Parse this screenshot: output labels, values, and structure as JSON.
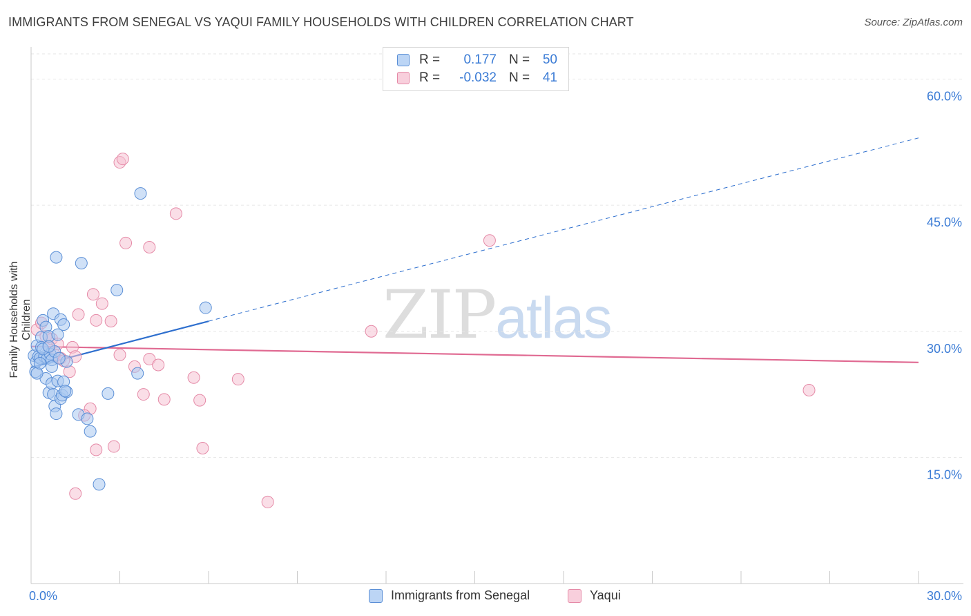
{
  "title": "IMMIGRANTS FROM SENEGAL VS YAQUI FAMILY HOUSEHOLDS WITH CHILDREN CORRELATION CHART",
  "source": "Source: ZipAtlas.com",
  "watermark": {
    "zip": "ZIP",
    "atlas": "atlas"
  },
  "legend": {
    "rows": [
      {
        "r_label": "R =",
        "r_value": "0.177",
        "n_label": "N =",
        "n_value": "50"
      },
      {
        "r_label": "R =",
        "r_value": "-0.032",
        "n_label": "N =",
        "n_value": "41"
      }
    ]
  },
  "bottom_legend": [
    "Immigrants from Senegal",
    "Yaqui"
  ],
  "colors": {
    "senegal_fill": "#a9c8f0",
    "senegal_stroke": "#5b8fd6",
    "senegal_line": "#2e6fce",
    "yaqui_fill": "#f6c3d3",
    "yaqui_stroke": "#e58aa7",
    "yaqui_line": "#e06a92",
    "axis_label": "#3a7bd5",
    "grid": "#e6e6e6"
  },
  "chart_data": {
    "type": "scatter",
    "title": "IMMIGRANTS FROM SENEGAL VS YAQUI FAMILY HOUSEHOLDS WITH CHILDREN CORRELATION CHART",
    "xlabel": "",
    "ylabel": "Family Households with Children",
    "xlim": [
      0,
      30
    ],
    "ylim": [
      0,
      63
    ],
    "x_tick_labels": [
      "0.0%",
      "30.0%"
    ],
    "y_ticks": [
      15,
      30,
      45,
      60
    ],
    "y_tick_labels": [
      "15.0%",
      "30.0%",
      "45.0%",
      "60.0%"
    ],
    "series": [
      {
        "name": "Immigrants from Senegal",
        "R": 0.177,
        "N": 50,
        "trend": {
          "x0": 0,
          "y0": 25.7,
          "x1": 6.0,
          "y1": 31.2,
          "dashed_to_x": 30,
          "dashed_to_y": 53.0
        },
        "points": [
          [
            0.1,
            27.1
          ],
          [
            0.15,
            25.2
          ],
          [
            0.18,
            26.4
          ],
          [
            0.2,
            28.3
          ],
          [
            0.25,
            27.0
          ],
          [
            0.3,
            26.8
          ],
          [
            0.35,
            29.3
          ],
          [
            0.4,
            31.3
          ],
          [
            0.45,
            27.0
          ],
          [
            0.5,
            30.5
          ],
          [
            0.55,
            26.8
          ],
          [
            0.6,
            29.4
          ],
          [
            0.65,
            27.3
          ],
          [
            0.7,
            26.6
          ],
          [
            0.75,
            32.1
          ],
          [
            0.8,
            27.6
          ],
          [
            0.85,
            38.8
          ],
          [
            0.9,
            29.6
          ],
          [
            1.0,
            31.4
          ],
          [
            1.1,
            30.8
          ],
          [
            1.2,
            26.4
          ],
          [
            0.5,
            24.4
          ],
          [
            0.6,
            22.7
          ],
          [
            0.7,
            23.8
          ],
          [
            0.75,
            22.5
          ],
          [
            0.8,
            21.1
          ],
          [
            0.85,
            20.2
          ],
          [
            0.9,
            24.1
          ],
          [
            1.0,
            22.0
          ],
          [
            1.05,
            22.4
          ],
          [
            1.1,
            24.0
          ],
          [
            1.2,
            22.8
          ],
          [
            1.6,
            20.1
          ],
          [
            1.9,
            19.6
          ],
          [
            2.0,
            18.1
          ],
          [
            1.7,
            38.1
          ],
          [
            2.6,
            22.6
          ],
          [
            2.9,
            34.9
          ],
          [
            3.6,
            25.0
          ],
          [
            3.7,
            46.4
          ],
          [
            5.9,
            32.8
          ],
          [
            2.3,
            11.8
          ],
          [
            0.2,
            25.0
          ],
          [
            0.3,
            26.2
          ],
          [
            0.35,
            28.1
          ],
          [
            0.4,
            27.9
          ],
          [
            0.6,
            28.2
          ],
          [
            0.7,
            25.8
          ],
          [
            0.95,
            26.8
          ],
          [
            1.15,
            22.9
          ]
        ]
      },
      {
        "name": "Yaqui",
        "R": -0.032,
        "N": 41,
        "trend": {
          "x0": 0,
          "y0": 28.2,
          "x1": 30,
          "y1": 26.3
        },
        "points": [
          [
            0.2,
            30.2
          ],
          [
            0.35,
            31.0
          ],
          [
            0.5,
            29.4
          ],
          [
            0.6,
            28.1
          ],
          [
            0.7,
            29.1
          ],
          [
            0.8,
            27.2
          ],
          [
            0.9,
            28.5
          ],
          [
            1.0,
            26.8
          ],
          [
            1.1,
            26.5
          ],
          [
            1.3,
            25.2
          ],
          [
            1.4,
            28.1
          ],
          [
            1.5,
            27.0
          ],
          [
            1.6,
            32.0
          ],
          [
            2.1,
            34.4
          ],
          [
            2.2,
            31.3
          ],
          [
            2.4,
            33.3
          ],
          [
            2.7,
            31.2
          ],
          [
            2.2,
            15.9
          ],
          [
            2.8,
            16.3
          ],
          [
            2.0,
            20.8
          ],
          [
            1.8,
            20.0
          ],
          [
            3.0,
            27.2
          ],
          [
            3.5,
            25.8
          ],
          [
            3.8,
            22.5
          ],
          [
            4.0,
            26.7
          ],
          [
            4.3,
            26.0
          ],
          [
            4.5,
            21.9
          ],
          [
            3.0,
            50.1
          ],
          [
            3.1,
            50.5
          ],
          [
            3.2,
            40.5
          ],
          [
            4.0,
            40.0
          ],
          [
            4.9,
            44.0
          ],
          [
            5.5,
            24.5
          ],
          [
            5.7,
            21.8
          ],
          [
            5.8,
            16.1
          ],
          [
            7.0,
            24.3
          ],
          [
            8.0,
            9.7
          ],
          [
            11.5,
            30.0
          ],
          [
            15.5,
            40.8
          ],
          [
            26.3,
            23.0
          ],
          [
            1.5,
            10.7
          ]
        ]
      }
    ]
  }
}
